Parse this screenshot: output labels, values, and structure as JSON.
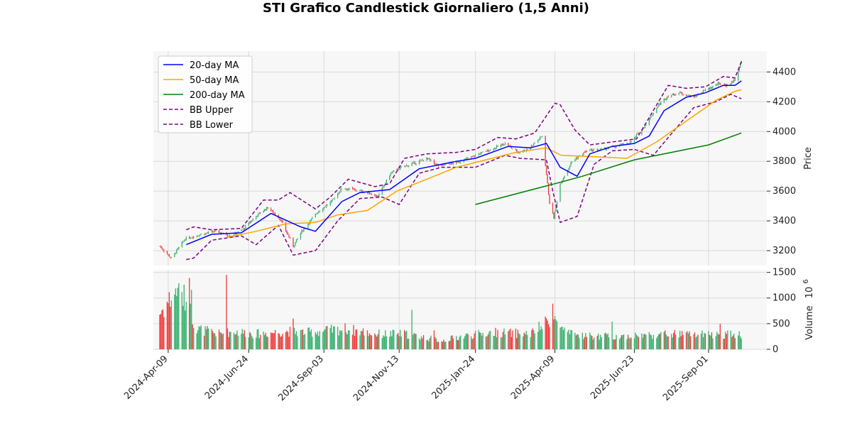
{
  "chart_data": {
    "type": "candlestick",
    "title": "STI Grafico Candlestick Giornaliero (1,5 Anni)",
    "price_axis": {
      "label": "Price",
      "ylim": [
        3100,
        4540
      ],
      "ticks": [
        3200,
        3400,
        3600,
        3800,
        4000,
        4200,
        4400
      ]
    },
    "volume_axis": {
      "label": "Volume",
      "exponent_label": "10",
      "exponent": "6",
      "ylim": [
        0,
        1550
      ],
      "ticks": [
        0,
        500,
        1000,
        1500
      ]
    },
    "x_tick_labels": [
      "2024-Apr-09",
      "2024-Jun-24",
      "2024-Sep-03",
      "2024-Nov-13",
      "2025-Jan-24",
      "2025-Apr-09",
      "2025-Jun-23",
      "2025-Sep-01"
    ],
    "grid": true,
    "legend": {
      "placement": "top-left",
      "entries": [
        {
          "name": "20-day MA",
          "color": "#0000ff",
          "style": "solid"
        },
        {
          "name": "50-day MA",
          "color": "#ffa500",
          "style": "solid"
        },
        {
          "name": "200-day MA",
          "color": "#008000",
          "style": "solid"
        },
        {
          "name": "BB Upper",
          "color": "#800080",
          "style": "dashed"
        },
        {
          "name": "BB Lower",
          "color": "#800080",
          "style": "dashed"
        }
      ]
    },
    "colors": {
      "up": "#3cb371",
      "down": "#f03c3c",
      "panel_bg": "#f7f7f7",
      "grid": "#d9d9d9"
    },
    "close_anchors": [
      [
        "2024-04-01",
        3230
      ],
      [
        "2024-04-12",
        3150
      ],
      [
        "2024-04-25",
        3280
      ],
      [
        "2024-05-10",
        3310
      ],
      [
        "2024-05-24",
        3330
      ],
      [
        "2024-06-07",
        3300
      ],
      [
        "2024-06-18",
        3340
      ],
      [
        "2024-07-02",
        3440
      ],
      [
        "2024-07-12",
        3490
      ],
      [
        "2024-07-24",
        3410
      ],
      [
        "2024-08-05",
        3230
      ],
      [
        "2024-08-13",
        3330
      ],
      [
        "2024-08-28",
        3460
      ],
      [
        "2024-09-10",
        3530
      ],
      [
        "2024-09-20",
        3620
      ],
      [
        "2024-10-01",
        3610
      ],
      [
        "2024-10-14",
        3590
      ],
      [
        "2024-10-24",
        3565
      ],
      [
        "2024-11-05",
        3720
      ],
      [
        "2024-11-15",
        3760
      ],
      [
        "2024-11-29",
        3790
      ],
      [
        "2024-12-09",
        3820
      ],
      [
        "2024-12-20",
        3770
      ],
      [
        "2025-01-06",
        3790
      ],
      [
        "2025-01-17",
        3820
      ],
      [
        "2025-01-31",
        3860
      ],
      [
        "2025-02-11",
        3890
      ],
      [
        "2025-02-21",
        3920
      ],
      [
        "2025-03-05",
        3860
      ],
      [
        "2025-03-14",
        3880
      ],
      [
        "2025-03-28",
        3970
      ],
      [
        "2025-04-04",
        3520
      ],
      [
        "2025-04-08",
        3420
      ],
      [
        "2025-04-14",
        3650
      ],
      [
        "2025-04-25",
        3800
      ],
      [
        "2025-05-09",
        3870
      ],
      [
        "2025-05-23",
        3880
      ],
      [
        "2025-06-06",
        3900
      ],
      [
        "2025-06-20",
        3930
      ],
      [
        "2025-07-04",
        4050
      ],
      [
        "2025-07-16",
        4180
      ],
      [
        "2025-07-25",
        4240
      ],
      [
        "2025-08-05",
        4260
      ],
      [
        "2025-08-18",
        4230
      ],
      [
        "2025-08-27",
        4270
      ],
      [
        "2025-09-10",
        4320
      ],
      [
        "2025-09-19",
        4310
      ],
      [
        "2025-09-26",
        4350
      ],
      [
        "2025-10-02",
        4470
      ]
    ],
    "moving_averages": {
      "ma20": [
        [
          "2024-04-26",
          3240
        ],
        [
          "2024-05-20",
          3310
        ],
        [
          "2024-06-17",
          3320
        ],
        [
          "2024-07-15",
          3450
        ],
        [
          "2024-08-12",
          3360
        ],
        [
          "2024-08-26",
          3330
        ],
        [
          "2024-09-20",
          3530
        ],
        [
          "2024-10-07",
          3590
        ],
        [
          "2024-11-04",
          3610
        ],
        [
          "2024-12-02",
          3750
        ],
        [
          "2025-01-06",
          3800
        ],
        [
          "2025-01-24",
          3820
        ],
        [
          "2025-02-24",
          3900
        ],
        [
          "2025-03-17",
          3890
        ],
        [
          "2025-04-01",
          3920
        ],
        [
          "2025-04-14",
          3760
        ],
        [
          "2025-04-30",
          3700
        ],
        [
          "2025-05-12",
          3850
        ],
        [
          "2025-06-02",
          3900
        ],
        [
          "2025-06-23",
          3920
        ],
        [
          "2025-07-07",
          3970
        ],
        [
          "2025-07-21",
          4140
        ],
        [
          "2025-08-11",
          4230
        ],
        [
          "2025-08-29",
          4260
        ],
        [
          "2025-09-15",
          4310
        ],
        [
          "2025-09-26",
          4310
        ],
        [
          "2025-10-02",
          4340
        ]
      ],
      "ma50": [
        [
          "2024-06-03",
          3290
        ],
        [
          "2024-07-01",
          3330
        ],
        [
          "2024-07-29",
          3380
        ],
        [
          "2024-08-26",
          3390
        ],
        [
          "2024-09-16",
          3440
        ],
        [
          "2024-10-14",
          3470
        ],
        [
          "2024-11-11",
          3600
        ],
        [
          "2024-12-09",
          3680
        ],
        [
          "2025-01-06",
          3760
        ],
        [
          "2025-02-03",
          3810
        ],
        [
          "2025-03-03",
          3860
        ],
        [
          "2025-04-01",
          3890
        ],
        [
          "2025-04-15",
          3840
        ],
        [
          "2025-05-19",
          3830
        ],
        [
          "2025-06-16",
          3820
        ],
        [
          "2025-07-14",
          3930
        ],
        [
          "2025-08-11",
          4070
        ],
        [
          "2025-09-08",
          4210
        ],
        [
          "2025-09-26",
          4270
        ],
        [
          "2025-10-02",
          4280
        ]
      ],
      "ma200": [
        [
          "2025-01-24",
          3510
        ],
        [
          "2025-04-09",
          3650
        ],
        [
          "2025-05-05",
          3700
        ],
        [
          "2025-06-23",
          3810
        ],
        [
          "2025-09-01",
          3910
        ],
        [
          "2025-10-02",
          3990
        ]
      ],
      "bb_upper": [
        [
          "2024-04-26",
          3340
        ],
        [
          "2024-05-03",
          3360
        ],
        [
          "2024-05-20",
          3340
        ],
        [
          "2024-06-17",
          3350
        ],
        [
          "2024-07-08",
          3540
        ],
        [
          "2024-07-22",
          3540
        ],
        [
          "2024-08-02",
          3590
        ],
        [
          "2024-08-26",
          3480
        ],
        [
          "2024-09-09",
          3560
        ],
        [
          "2024-09-26",
          3680
        ],
        [
          "2024-10-21",
          3630
        ],
        [
          "2024-11-04",
          3650
        ],
        [
          "2024-11-18",
          3820
        ],
        [
          "2024-12-09",
          3850
        ],
        [
          "2025-01-06",
          3860
        ],
        [
          "2025-01-24",
          3880
        ],
        [
          "2025-02-14",
          3960
        ],
        [
          "2025-03-03",
          3950
        ],
        [
          "2025-03-21",
          3990
        ],
        [
          "2025-04-09",
          4190
        ],
        [
          "2025-04-14",
          4180
        ],
        [
          "2025-04-28",
          4010
        ],
        [
          "2025-05-12",
          3910
        ],
        [
          "2025-06-02",
          3930
        ],
        [
          "2025-06-25",
          3950
        ],
        [
          "2025-07-25",
          4310
        ],
        [
          "2025-08-11",
          4290
        ],
        [
          "2025-08-29",
          4300
        ],
        [
          "2025-09-15",
          4370
        ],
        [
          "2025-09-26",
          4360
        ],
        [
          "2025-10-02",
          4470
        ]
      ],
      "bb_lower": [
        [
          "2024-04-26",
          3140
        ],
        [
          "2024-05-03",
          3150
        ],
        [
          "2024-05-20",
          3270
        ],
        [
          "2024-06-17",
          3300
        ],
        [
          "2024-07-01",
          3240
        ],
        [
          "2024-07-22",
          3370
        ],
        [
          "2024-08-05",
          3170
        ],
        [
          "2024-08-26",
          3200
        ],
        [
          "2024-09-16",
          3400
        ],
        [
          "2024-10-07",
          3550
        ],
        [
          "2024-10-28",
          3560
        ],
        [
          "2024-11-13",
          3510
        ],
        [
          "2024-12-02",
          3720
        ],
        [
          "2024-12-23",
          3760
        ],
        [
          "2025-01-24",
          3760
        ],
        [
          "2025-02-21",
          3840
        ],
        [
          "2025-03-07",
          3820
        ],
        [
          "2025-04-01",
          3810
        ],
        [
          "2025-04-07",
          3600
        ],
        [
          "2025-04-14",
          3390
        ],
        [
          "2025-04-30",
          3430
        ],
        [
          "2025-05-16",
          3780
        ],
        [
          "2025-06-02",
          3870
        ],
        [
          "2025-06-23",
          3880
        ],
        [
          "2025-07-11",
          3840
        ],
        [
          "2025-07-25",
          3960
        ],
        [
          "2025-08-18",
          4160
        ],
        [
          "2025-09-08",
          4200
        ],
        [
          "2025-09-22",
          4250
        ],
        [
          "2025-10-02",
          4220
        ]
      ]
    },
    "volume_anchors": [
      [
        "2024-04-01",
        700
      ],
      [
        "2024-04-15",
        1100
      ],
      [
        "2024-04-25",
        1000
      ],
      [
        "2024-05-06",
        400
      ],
      [
        "2024-05-27",
        300
      ],
      [
        "2024-06-10",
        350
      ],
      [
        "2024-07-01",
        300
      ],
      [
        "2024-07-29",
        350
      ],
      [
        "2024-08-19",
        330
      ],
      [
        "2024-09-23",
        400
      ],
      [
        "2024-10-21",
        300
      ],
      [
        "2024-11-18",
        300
      ],
      [
        "2024-12-23",
        170
      ],
      [
        "2025-01-13",
        260
      ],
      [
        "2025-02-10",
        330
      ],
      [
        "2025-03-17",
        300
      ],
      [
        "2025-04-07",
        600
      ],
      [
        "2025-04-21",
        300
      ],
      [
        "2025-05-19",
        250
      ],
      [
        "2025-06-16",
        260
      ],
      [
        "2025-07-28",
        300
      ],
      [
        "2025-09-01",
        280
      ],
      [
        "2025-10-02",
        300
      ]
    ],
    "volume_spikes": [
      [
        "2024-04-18",
        1200
      ],
      [
        "2024-04-24",
        1260
      ],
      [
        "2024-04-29",
        1390
      ],
      [
        "2024-05-01",
        1160
      ],
      [
        "2024-06-03",
        1450
      ],
      [
        "2024-08-05",
        600
      ],
      [
        "2024-11-25",
        770
      ],
      [
        "2024-12-16",
        370
      ],
      [
        "2025-04-07",
        890
      ],
      [
        "2025-04-09",
        650
      ],
      [
        "2025-06-02",
        540
      ],
      [
        "2025-09-12",
        500
      ]
    ],
    "date_range": [
      "2024-04-01",
      "2025-10-02"
    ]
  }
}
